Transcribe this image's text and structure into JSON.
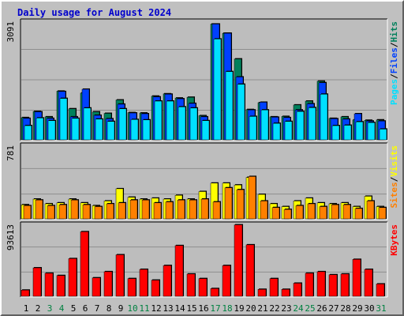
{
  "title": "Daily usage for August 2024",
  "colors": {
    "background": "#c0c0c0",
    "panel": "#bdbdbd",
    "hits": "#00805c",
    "files": "#0040ff",
    "pages": "#00e0ff",
    "visits": "#ffff00",
    "sites": "#ff8000",
    "kbytes": "#ff0000",
    "title": "#0000cc",
    "day_weekend": "#008040",
    "day_weekday": "#000000"
  },
  "chart_data": [
    {
      "type": "bar",
      "name": "hits-files-pages",
      "y_max_label": "3091",
      "ylim": [
        0,
        3091
      ],
      "grid": true,
      "legend": {
        "position": "right",
        "labels": [
          "Pages",
          "/",
          "Files",
          "/",
          "Hits"
        ]
      },
      "categories": [
        "1",
        "2",
        "3",
        "4",
        "5",
        "6",
        "7",
        "8",
        "9",
        "10",
        "11",
        "12",
        "13",
        "14",
        "15",
        "16",
        "17",
        "18",
        "19",
        "20",
        "21",
        "22",
        "23",
        "24",
        "25",
        "26",
        "27",
        "28",
        "29",
        "30",
        "31"
      ],
      "series": [
        {
          "name": "Hits",
          "values": [
            580,
            740,
            600,
            1270,
            810,
            1220,
            730,
            690,
            1040,
            710,
            700,
            1140,
            1200,
            1090,
            1110,
            630,
            3020,
            2780,
            2110,
            790,
            970,
            600,
            610,
            910,
            1010,
            1530,
            560,
            600,
            520,
            510,
            520
          ]
        },
        {
          "name": "Files",
          "values": [
            560,
            730,
            560,
            1260,
            600,
            1320,
            640,
            550,
            930,
            700,
            680,
            1120,
            1190,
            1070,
            950,
            600,
            3020,
            2780,
            1640,
            780,
            980,
            590,
            580,
            780,
            940,
            1490,
            550,
            540,
            680,
            490,
            490
          ]
        },
        {
          "name": "Pages",
          "values": [
            370,
            570,
            500,
            1080,
            560,
            830,
            540,
            480,
            810,
            530,
            520,
            1010,
            1010,
            860,
            830,
            500,
            2630,
            1780,
            1450,
            610,
            780,
            430,
            480,
            740,
            840,
            1190,
            370,
            380,
            470,
            450,
            280
          ]
        }
      ]
    },
    {
      "type": "bar",
      "name": "visits-sites",
      "y_max_label": "781",
      "ylim": [
        0,
        781
      ],
      "grid": true,
      "legend": {
        "position": "right",
        "labels": [
          "Sites",
          "/",
          "Visits"
        ]
      },
      "categories": [
        "1",
        "2",
        "3",
        "4",
        "5",
        "6",
        "7",
        "8",
        "9",
        "10",
        "11",
        "12",
        "13",
        "14",
        "15",
        "16",
        "17",
        "18",
        "19",
        "20",
        "21",
        "22",
        "23",
        "24",
        "25",
        "26",
        "27",
        "28",
        "29",
        "30",
        "31"
      ],
      "series": [
        {
          "name": "Visits",
          "values": [
            150,
            210,
            160,
            170,
            210,
            170,
            140,
            190,
            320,
            230,
            210,
            220,
            210,
            250,
            210,
            290,
            380,
            380,
            360,
            440,
            260,
            160,
            130,
            190,
            220,
            170,
            160,
            170,
            130,
            240,
            130
          ]
        },
        {
          "name": "Sites",
          "values": [
            140,
            200,
            140,
            150,
            200,
            150,
            130,
            160,
            170,
            200,
            200,
            170,
            180,
            200,
            200,
            210,
            180,
            330,
            310,
            450,
            190,
            120,
            100,
            140,
            160,
            130,
            150,
            150,
            110,
            190,
            120
          ]
        }
      ]
    },
    {
      "type": "bar",
      "name": "kbytes",
      "y_max_label": "93613",
      "ylim": [
        0,
        93613
      ],
      "grid": true,
      "legend": {
        "position": "right",
        "labels": [
          "KBytes"
        ]
      },
      "categories": [
        "1",
        "2",
        "3",
        "4",
        "5",
        "6",
        "7",
        "8",
        "9",
        "10",
        "11",
        "12",
        "13",
        "14",
        "15",
        "16",
        "17",
        "18",
        "19",
        "20",
        "21",
        "22",
        "23",
        "24",
        "25",
        "26",
        "27",
        "28",
        "29",
        "30",
        "31"
      ],
      "series": [
        {
          "name": "KBytes",
          "values": [
            8000,
            37000,
            30000,
            27000,
            49000,
            84000,
            24000,
            32000,
            54000,
            23000,
            35000,
            21000,
            40000,
            66000,
            29000,
            23000,
            10000,
            40000,
            93000,
            67000,
            9000,
            23000,
            9000,
            17000,
            30000,
            32000,
            28000,
            29000,
            48000,
            35000,
            16000
          ]
        }
      ]
    }
  ],
  "days": [
    {
      "label": "1",
      "weekend": false
    },
    {
      "label": "2",
      "weekend": false
    },
    {
      "label": "3",
      "weekend": true
    },
    {
      "label": "4",
      "weekend": true
    },
    {
      "label": "5",
      "weekend": false
    },
    {
      "label": "6",
      "weekend": false
    },
    {
      "label": "7",
      "weekend": false
    },
    {
      "label": "8",
      "weekend": false
    },
    {
      "label": "9",
      "weekend": false
    },
    {
      "label": "10",
      "weekend": true
    },
    {
      "label": "11",
      "weekend": true
    },
    {
      "label": "12",
      "weekend": false
    },
    {
      "label": "13",
      "weekend": false
    },
    {
      "label": "14",
      "weekend": false
    },
    {
      "label": "15",
      "weekend": false
    },
    {
      "label": "16",
      "weekend": false
    },
    {
      "label": "17",
      "weekend": true
    },
    {
      "label": "18",
      "weekend": true
    },
    {
      "label": "19",
      "weekend": false
    },
    {
      "label": "20",
      "weekend": false
    },
    {
      "label": "21",
      "weekend": false
    },
    {
      "label": "22",
      "weekend": false
    },
    {
      "label": "23",
      "weekend": false
    },
    {
      "label": "24",
      "weekend": true
    },
    {
      "label": "25",
      "weekend": true
    },
    {
      "label": "26",
      "weekend": false
    },
    {
      "label": "27",
      "weekend": false
    },
    {
      "label": "28",
      "weekend": false
    },
    {
      "label": "29",
      "weekend": false
    },
    {
      "label": "30",
      "weekend": false
    },
    {
      "label": "31",
      "weekend": true
    }
  ]
}
